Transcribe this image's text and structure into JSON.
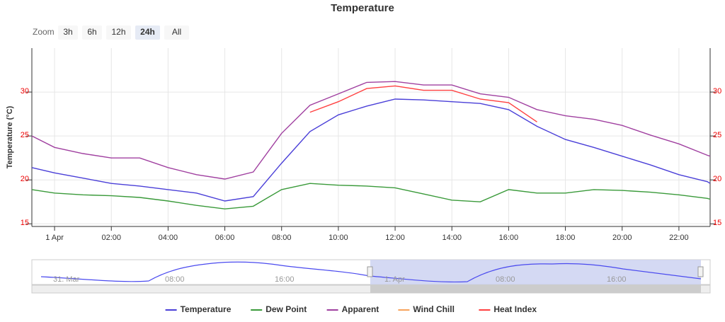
{
  "chart_data": {
    "type": "line",
    "title": "Temperature",
    "ylabel": "Temperature (°C)",
    "x": [
      -0.8,
      0,
      1,
      2,
      3,
      4,
      5,
      6,
      7,
      8,
      9,
      10,
      11,
      12,
      13,
      14,
      15,
      16,
      17,
      18,
      19,
      20,
      21,
      22,
      23,
      23.1
    ],
    "xlim": [
      -0.8,
      23.1
    ],
    "xticks": [
      {
        "value": 0,
        "label": "1 Apr"
      },
      {
        "value": 2,
        "label": "02:00"
      },
      {
        "value": 4,
        "label": "04:00"
      },
      {
        "value": 6,
        "label": "06:00"
      },
      {
        "value": 8,
        "label": "08:00"
      },
      {
        "value": 10,
        "label": "10:00"
      },
      {
        "value": 12,
        "label": "12:00"
      },
      {
        "value": 14,
        "label": "14:00"
      },
      {
        "value": 16,
        "label": "16:00"
      },
      {
        "value": 18,
        "label": "18:00"
      },
      {
        "value": 20,
        "label": "20:00"
      },
      {
        "value": 22,
        "label": "22:00"
      }
    ],
    "ylim": [
      14.7,
      35
    ],
    "yticks": [
      15,
      20,
      25,
      30
    ],
    "grid": true,
    "series": [
      {
        "name": "Temperature",
        "color": "#4a3fd8",
        "values": [
          21.4,
          20.8,
          20.2,
          19.6,
          19.3,
          18.9,
          18.5,
          17.6,
          18.1,
          21.9,
          25.5,
          27.4,
          28.4,
          29.2,
          29.1,
          28.9,
          28.7,
          28.0,
          26.1,
          24.6,
          23.7,
          22.7,
          21.7,
          20.6,
          19.8,
          19.6
        ]
      },
      {
        "name": "Dew Point",
        "color": "#3a9a3a",
        "values": [
          18.9,
          18.5,
          18.3,
          18.2,
          18.0,
          17.6,
          17.1,
          16.7,
          17.0,
          18.9,
          19.6,
          19.4,
          19.3,
          19.1,
          18.4,
          17.7,
          17.5,
          18.9,
          18.5,
          18.5,
          18.9,
          18.8,
          18.6,
          18.3,
          17.9,
          17.8
        ]
      },
      {
        "name": "Apparent",
        "color": "#a040a0",
        "values": [
          25.0,
          23.7,
          23.0,
          22.5,
          22.5,
          21.4,
          20.6,
          20.1,
          20.9,
          25.3,
          28.5,
          29.8,
          31.1,
          31.2,
          30.8,
          30.8,
          29.8,
          29.4,
          28.0,
          27.3,
          26.9,
          26.2,
          25.1,
          24.1,
          22.8,
          22.7
        ]
      },
      {
        "name": "Wind Chill",
        "color": "#f7a35c",
        "values": [
          null,
          null,
          null,
          null,
          null,
          null,
          null,
          null,
          null,
          null,
          null,
          null,
          null,
          null,
          null,
          null,
          null,
          null,
          null,
          null,
          null,
          null,
          null,
          null,
          null,
          null
        ]
      },
      {
        "name": "Heat Index",
        "color": "#ff4040",
        "values": [
          null,
          null,
          null,
          null,
          null,
          null,
          null,
          null,
          null,
          null,
          27.7,
          28.9,
          30.4,
          30.7,
          30.2,
          30.2,
          29.2,
          28.8,
          26.6,
          null,
          null,
          null,
          null,
          null,
          null,
          null
        ]
      }
    ]
  },
  "range_selector": {
    "label": "Zoom",
    "buttons": [
      "3h",
      "6h",
      "12h",
      "24h",
      "All"
    ],
    "selected": 3
  },
  "navigator": {
    "labels": [
      "31. Mar",
      "08:00",
      "16:00",
      "1. Apr",
      "08:00",
      "16:00"
    ]
  }
}
